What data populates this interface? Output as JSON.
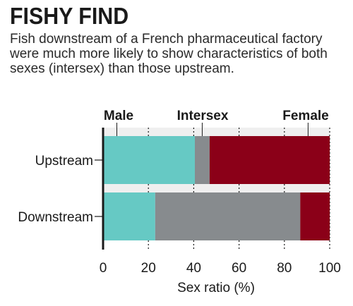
{
  "chart_data": {
    "type": "bar",
    "orientation": "horizontal",
    "stacked": true,
    "title": "FISHY FIND",
    "subtitle": "Fish downstream of a French pharmaceutical factory were much more likely to show characteristics of both sexes (intersex) than those upstream.",
    "categories": [
      "Upstream",
      "Downstream"
    ],
    "series": [
      {
        "name": "Male",
        "color": "#66c9c4",
        "values": [
          40.5,
          23
        ]
      },
      {
        "name": "Intersex",
        "color": "#878b8e",
        "values": [
          6.5,
          64
        ]
      },
      {
        "name": "Female",
        "color": "#8b0018",
        "values": [
          53,
          13
        ]
      }
    ],
    "xlabel": "Sex ratio (%)",
    "ylabel": "",
    "xlim": [
      0,
      100
    ],
    "xticks": [
      0,
      20,
      40,
      60,
      80,
      100
    ],
    "grid": "dotted vertical",
    "legend": "top, labels above segments"
  }
}
